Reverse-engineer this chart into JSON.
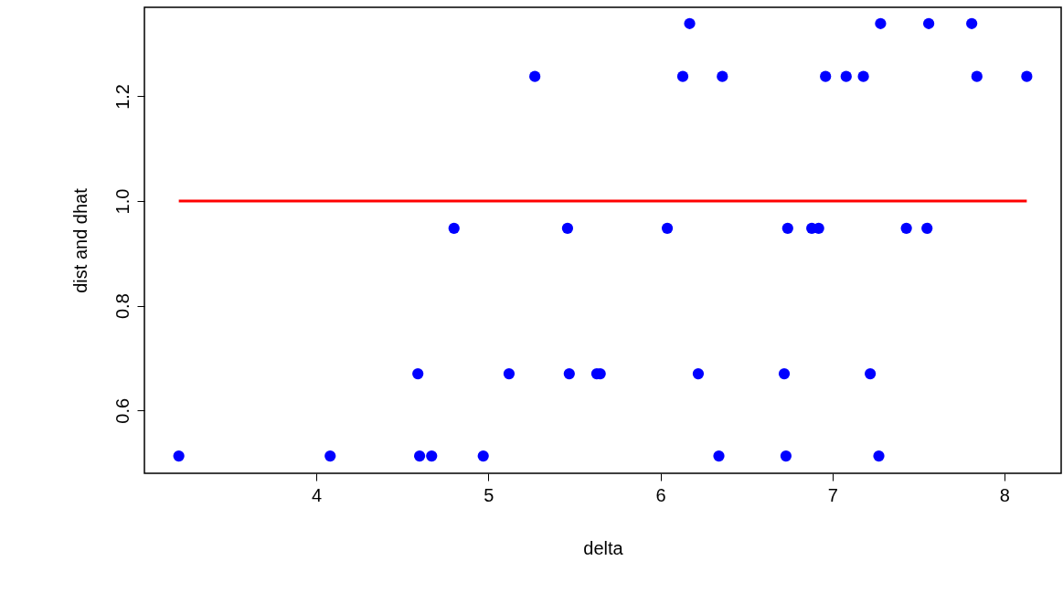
{
  "chart_data": {
    "type": "scatter",
    "xlabel": "delta",
    "ylabel": "dist and dhat",
    "xlim": [
      3.0,
      8.33
    ],
    "ylim": [
      0.48,
      1.37
    ],
    "xticks": [
      4,
      5,
      6,
      7,
      8
    ],
    "yticks": [
      0.6,
      0.8,
      {
        "value": 1.0,
        "label": "1.0"
      },
      1.2
    ],
    "grid": false,
    "series": [
      {
        "marker": "circle",
        "color": "#0000ff",
        "x": [
          3.2,
          4.08,
          4.6,
          4.67,
          4.97,
          6.34,
          6.73,
          7.27,
          4.59,
          5.12,
          5.47,
          5.63,
          5.65,
          6.22,
          6.72,
          7.22,
          4.8,
          5.46,
          6.04,
          6.74,
          6.88,
          6.92,
          7.43,
          7.55,
          5.27,
          6.13,
          6.36,
          6.96,
          7.08,
          7.18,
          7.84,
          8.13,
          6.17,
          7.28,
          7.56,
          7.81
        ],
        "values": [
          0.513,
          0.513,
          0.513,
          0.513,
          0.513,
          0.513,
          0.513,
          0.513,
          0.67,
          0.67,
          0.67,
          0.67,
          0.67,
          0.67,
          0.67,
          0.67,
          0.948,
          0.948,
          0.948,
          0.948,
          0.948,
          0.948,
          0.948,
          0.948,
          1.238,
          1.238,
          1.238,
          1.238,
          1.238,
          1.238,
          1.238,
          1.238,
          1.339,
          1.339,
          1.339,
          1.339
        ]
      },
      {
        "type": "line",
        "color": "#ff0000",
        "line_style": "solid",
        "x": [
          3.2,
          8.13
        ],
        "values": [
          1.0,
          1.0
        ]
      }
    ]
  }
}
